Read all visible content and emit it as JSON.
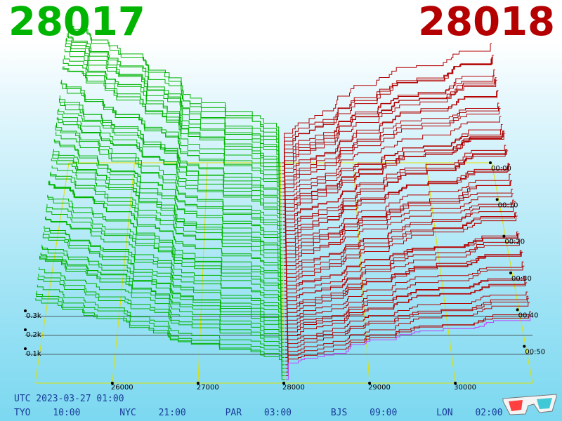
{
  "header": {
    "bid_price": "28017",
    "ask_price": "28018"
  },
  "footer": {
    "utc": "UTC 2023-03-27 01:00",
    "zones": [
      {
        "label": "TYO",
        "time": "10:00"
      },
      {
        "label": "NYC",
        "time": "21:00"
      },
      {
        "label": "PAR",
        "time": "03:00"
      },
      {
        "label": "BJS",
        "time": "09:00"
      },
      {
        "label": "LON",
        "time": "02:00"
      }
    ]
  },
  "icons": {
    "glasses": "3d-glasses-icon"
  },
  "colors": {
    "bid": "#00b400",
    "ask": "#b40000",
    "latest": "#c040ff",
    "grid": "#e0e000"
  },
  "chart_data": {
    "type": "3d-depth-history",
    "price_ticks": [
      "26000",
      "27000",
      "28000",
      "29000",
      "30000"
    ],
    "price_values": [
      26000,
      27000,
      28000,
      29000,
      30000
    ],
    "volume_ticks": [
      "0.1k",
      "0.2k",
      "0.3k"
    ],
    "volume_values": [
      100,
      200,
      300
    ],
    "time_ticks": [
      "00:00",
      "00:10",
      "00:20",
      "00:30",
      "00:40",
      "00:50"
    ],
    "time_values": [
      0,
      10,
      20,
      30,
      40,
      50
    ],
    "price_range": [
      25100,
      30900
    ],
    "time_range": [
      0,
      60
    ],
    "mid_price": 28017.5,
    "series": [
      {
        "name": "bid",
        "side": "bid"
      },
      {
        "name": "ask",
        "side": "ask"
      }
    ]
  }
}
